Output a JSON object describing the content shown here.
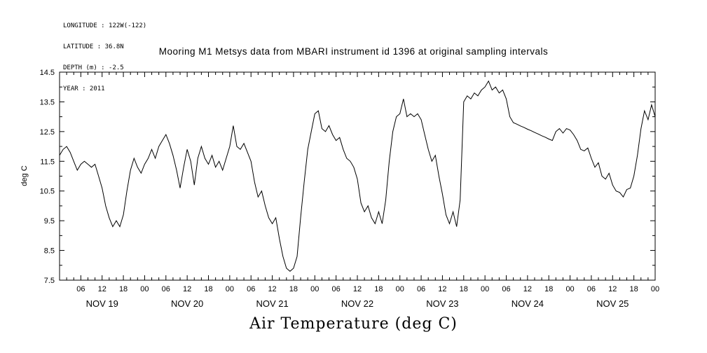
{
  "meta": {
    "lines": [
      "LONGITUDE : 122W(-122)",
      "LATITUDE : 36.8N",
      "DEPTH (m) : -2.5",
      "YEAR : 2011"
    ]
  },
  "chart_data": {
    "type": "line",
    "title": "Mooring M1 Metsys data from MBARI instrument id 1396 at original sampling intervals",
    "ylabel": "deg C",
    "caption": "Air Temperature (deg C)",
    "background_color": "#ffffff",
    "line_color": "#000000",
    "ylim": [
      7.5,
      14.5
    ],
    "y_ticks": [
      7.5,
      8.5,
      9.5,
      10.5,
      11.5,
      12.5,
      13.5,
      14.5
    ],
    "y_tick_labels": [
      "7.5",
      "8.5",
      "9.5",
      "10.5",
      "11.5",
      "12.5",
      "13.5",
      "14.5"
    ],
    "x_range_hours": [
      0,
      168
    ],
    "x_major_tick_step_hours": 6,
    "x_tick_labels": [
      "06",
      "12",
      "18",
      "00",
      "06",
      "12",
      "18",
      "00",
      "06",
      "12",
      "18",
      "00",
      "06",
      "12",
      "18",
      "00",
      "06",
      "12",
      "18",
      "00",
      "06",
      "12",
      "18",
      "00",
      "06",
      "12",
      "18",
      "00"
    ],
    "x_day_labels": [
      "NOV 19",
      "NOV 20",
      "NOV 21",
      "NOV 22",
      "NOV 23",
      "NOV 24",
      "NOV 25"
    ],
    "annotations": [
      "Straight line segment from about Nov 24 08:00 to Nov 24 19:00 indicates a gap in the recorded data"
    ],
    "series": [
      {
        "name": "air_temperature",
        "x_start_hour": 0,
        "x_step_hours": 1,
        "values": [
          11.7,
          11.9,
          12.0,
          11.8,
          11.5,
          11.2,
          11.4,
          11.5,
          11.4,
          11.3,
          11.4,
          11.0,
          10.6,
          10.0,
          9.6,
          9.3,
          9.5,
          9.3,
          9.7,
          10.5,
          11.2,
          11.6,
          11.3,
          11.1,
          11.4,
          11.6,
          11.9,
          11.6,
          12.0,
          12.2,
          12.4,
          12.1,
          11.7,
          11.2,
          10.6,
          11.3,
          11.9,
          11.5,
          10.7,
          11.6,
          12.0,
          11.6,
          11.4,
          11.7,
          11.3,
          11.5,
          11.2,
          11.6,
          12.0,
          12.7,
          12.0,
          11.9,
          12.1,
          11.8,
          11.5,
          10.8,
          10.3,
          10.5,
          10.0,
          9.6,
          9.4,
          9.6,
          8.9,
          8.3,
          7.9,
          7.8,
          7.9,
          8.3,
          9.6,
          10.8,
          11.9,
          12.5,
          13.1,
          13.2,
          12.6,
          12.5,
          12.7,
          12.4,
          12.2,
          12.3,
          11.9,
          11.6,
          11.5,
          11.3,
          10.9,
          10.1,
          9.8,
          10.0,
          9.6,
          9.4,
          9.8,
          9.4,
          10.2,
          11.5,
          12.5,
          13.0,
          13.1,
          13.6,
          13.0,
          13.1,
          13.0,
          13.1,
          12.9,
          12.4,
          11.9,
          11.5,
          11.7,
          11.0,
          10.4,
          9.7,
          9.4,
          9.8,
          9.3,
          10.2,
          13.5,
          13.7,
          13.6,
          13.8,
          13.7,
          13.9,
          14.0,
          14.2,
          13.9,
          14.0,
          13.8,
          13.9,
          13.6,
          13.0,
          12.8,
          12.75,
          12.69,
          12.64,
          12.58,
          12.53,
          12.47,
          12.42,
          12.36,
          12.31,
          12.25,
          12.2,
          12.5,
          12.6,
          12.45,
          12.6,
          12.55,
          12.4,
          12.2,
          11.9,
          11.85,
          11.95,
          11.6,
          11.3,
          11.45,
          11.0,
          10.9,
          11.1,
          10.7,
          10.5,
          10.45,
          10.3,
          10.55,
          10.6,
          11.0,
          11.7,
          12.6,
          13.2,
          12.9,
          13.4,
          13.0
        ]
      }
    ]
  }
}
